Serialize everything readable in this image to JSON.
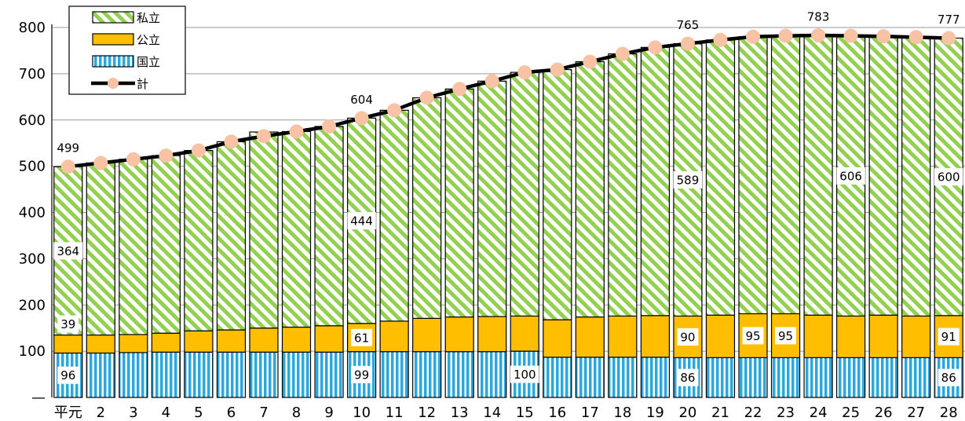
{
  "chart_data": {
    "type": "bar",
    "stacked": true,
    "categories": [
      "平元",
      "2",
      "3",
      "4",
      "5",
      "6",
      "7",
      "8",
      "9",
      "10",
      "11",
      "12",
      "13",
      "14",
      "15",
      "16",
      "17",
      "18",
      "19",
      "20",
      "21",
      "22",
      "23",
      "24",
      "25",
      "26",
      "27",
      "28"
    ],
    "series": [
      {
        "name": "国立",
        "color": "#2aa7dc",
        "values": [
          96,
          96,
          97,
          98,
          98,
          98,
          98,
          98,
          98,
          99,
          99,
          99,
          99,
          99,
          100,
          87,
          87,
          87,
          87,
          86,
          86,
          86,
          86,
          86,
          86,
          86,
          86,
          86
        ]
      },
      {
        "name": "公立",
        "color": "#ffbf00",
        "values": [
          39,
          39,
          39,
          41,
          46,
          48,
          52,
          54,
          57,
          61,
          66,
          72,
          75,
          76,
          76,
          81,
          87,
          89,
          90,
          90,
          92,
          95,
          95,
          92,
          90,
          92,
          90,
          91
        ]
      },
      {
        "name": "私立",
        "color": "#92d050",
        "values": [
          364,
          372,
          379,
          384,
          390,
          407,
          424,
          423,
          431,
          444,
          456,
          477,
          493,
          509,
          527,
          541,
          552,
          567,
          580,
          589,
          595,
          599,
          601,
          606,
          606,
          603,
          603,
          600
        ]
      }
    ],
    "total": {
      "name": "計",
      "values": [
        499,
        507,
        515,
        523,
        534,
        553,
        565,
        575,
        586,
        604,
        621,
        648,
        667,
        684,
        703,
        709,
        726,
        743,
        757,
        765,
        773,
        780,
        782,
        783,
        782,
        781,
        779,
        777
      ]
    },
    "data_labels": [
      {
        "series": "計",
        "category": "平元",
        "text": "499"
      },
      {
        "series": "計",
        "category": "10",
        "text": "604"
      },
      {
        "series": "計",
        "category": "20",
        "text": "765"
      },
      {
        "series": "計",
        "category": "24",
        "text": "783"
      },
      {
        "series": "計",
        "category": "28",
        "text": "777"
      },
      {
        "series": "私立",
        "category": "平元",
        "text": "364"
      },
      {
        "series": "私立",
        "category": "10",
        "text": "444"
      },
      {
        "series": "私立",
        "category": "20",
        "text": "589"
      },
      {
        "series": "私立",
        "category": "25",
        "text": "606"
      },
      {
        "series": "私立",
        "category": "28",
        "text": "600"
      },
      {
        "series": "公立",
        "category": "平元",
        "text": "39"
      },
      {
        "series": "公立",
        "category": "10",
        "text": "61"
      },
      {
        "series": "公立",
        "category": "20",
        "text": "90"
      },
      {
        "series": "公立",
        "category": "22",
        "text": "95"
      },
      {
        "series": "公立",
        "category": "23",
        "text": "95"
      },
      {
        "series": "公立",
        "category": "28",
        "text": "91"
      },
      {
        "series": "国立",
        "category": "平元",
        "text": "96"
      },
      {
        "series": "国立",
        "category": "10",
        "text": "99"
      },
      {
        "series": "国立",
        "category": "15",
        "text": "100"
      },
      {
        "series": "国立",
        "category": "20",
        "text": "86"
      },
      {
        "series": "国立",
        "category": "28",
        "text": "86"
      }
    ],
    "y_ticks": [
      "800",
      "700",
      "600",
      "500",
      "400",
      "300",
      "200",
      "100",
      "—"
    ],
    "ylim": [
      0,
      800
    ],
    "grid": true,
    "legend_position": "top-left",
    "title": "",
    "xlabel": "",
    "ylabel": ""
  },
  "legend": [
    {
      "key": "shiritsu",
      "label": "私立"
    },
    {
      "key": "kouritsu",
      "label": "公立"
    },
    {
      "key": "kokuritsu",
      "label": "国立"
    },
    {
      "key": "total",
      "label": "計"
    }
  ]
}
